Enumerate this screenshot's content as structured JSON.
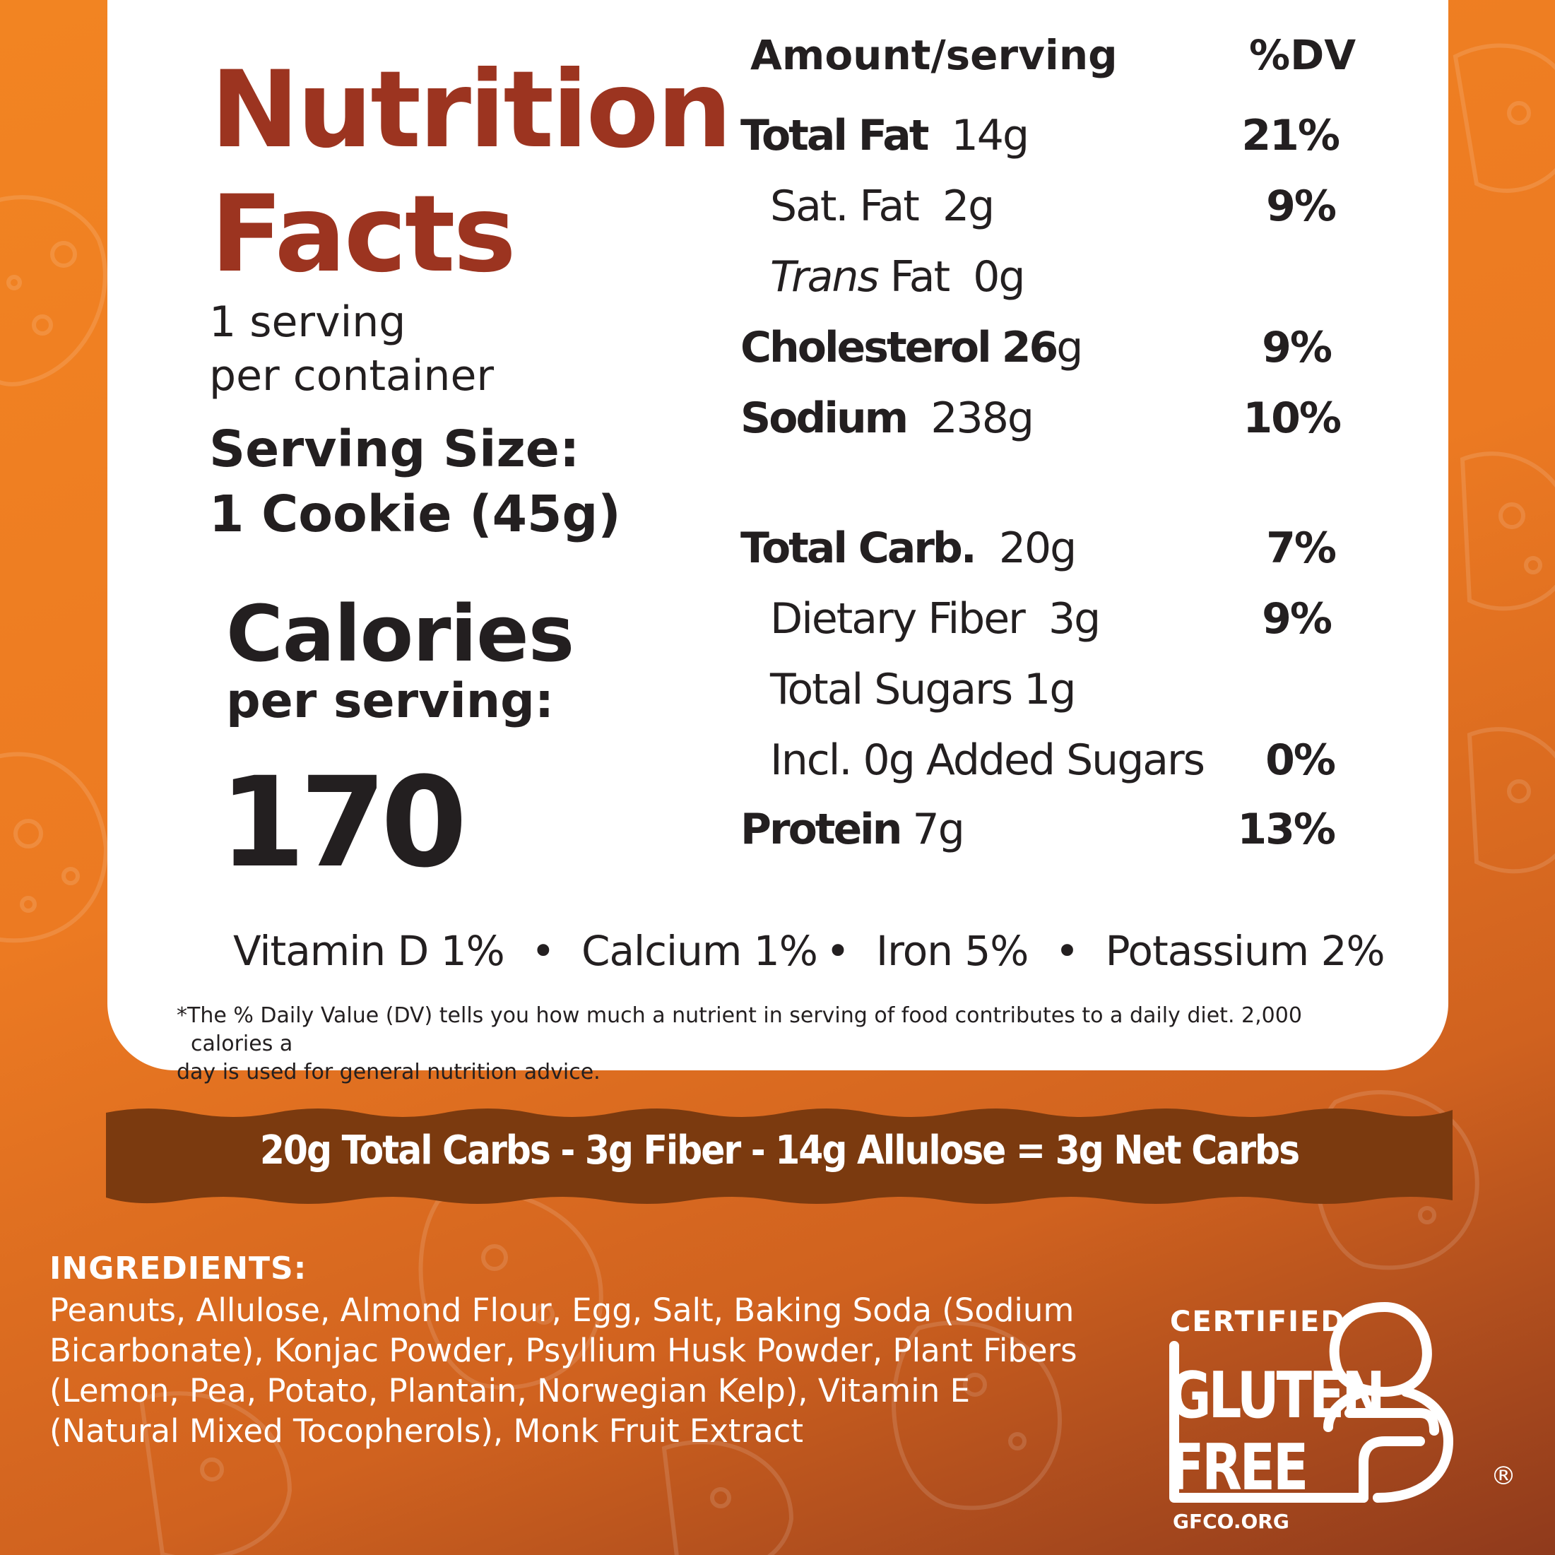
{
  "colors": {
    "title_red": "#9c3420",
    "text_dark": "#231f20",
    "band_brown": "#7b3a0f",
    "bg_orange": "#f28422",
    "bg_dark": "#8f3a1c",
    "card_white": "#ffffff"
  },
  "title": {
    "line1": "Nutrition",
    "line2": "Facts"
  },
  "servings": {
    "line1": "1 serving",
    "line2": "per container"
  },
  "serving_size": {
    "label": "Serving Size:",
    "value": "1 Cookie (45g)"
  },
  "calories": {
    "label": "Calories",
    "sublabel": "per serving:",
    "value": "170"
  },
  "table_header": {
    "amount": "Amount/serving",
    "dv": "%DV"
  },
  "nutrients": {
    "total_fat": {
      "name": "Total Fat",
      "amount": "14g",
      "dv": "21%"
    },
    "sat_fat": {
      "name": "Sat. Fat",
      "amount": "2g",
      "dv": "9%"
    },
    "trans_fat": {
      "name_italic": "Trans",
      "name": "Fat",
      "amount": "0g"
    },
    "cholesterol": {
      "name": "Cholesterol",
      "amount_bold": "26",
      "amount_unit": "g",
      "dv": "9%"
    },
    "sodium": {
      "name": "Sodium",
      "amount": "238g",
      "dv": "10%"
    },
    "total_carb": {
      "name": "Total Carb.",
      "amount": "20g",
      "dv": "7%"
    },
    "fiber": {
      "name": "Dietary Fiber",
      "amount": "3g",
      "dv": "9%"
    },
    "sugars": {
      "name": "Total Sugars",
      "amount": "1g"
    },
    "added_sugars": {
      "name": "Incl. 0g Added Sugars",
      "dv": "0%"
    },
    "protein": {
      "name": "Protein",
      "amount": "7g",
      "dv": "13%"
    }
  },
  "vitamins": {
    "vitamin_d": "Vitamin D 1%",
    "calcium": "Calcium 1%",
    "iron": "Iron 5%",
    "potassium": "Potassium 2%",
    "separator": "•"
  },
  "footnote": {
    "line1": "*The % Daily Value (DV) tells you how much a nutrient in serving of food contributes to a daily diet. 2,000 calories a",
    "line2": "day is used for general nutrition advice."
  },
  "net_carbs": "20g  Total Carbs  -  3g Fiber -  14g Allulose = 3g Net Carbs",
  "ingredients": {
    "title": "INGREDIENTS:",
    "line1": "Peanuts, Allulose, Almond Flour, Egg, Salt, Baking Soda (Sodium",
    "line2": "Bicarbonate), Konjac Powder, Psyllium Husk Powder, Plant Fibers",
    "line3": "(Lemon, Pea, Potato, Plantain, Norwegian Kelp), Vitamin E",
    "line4": "(Natural Mixed Tocopherols), Monk Fruit Extract"
  },
  "certification": {
    "certified": "CERTIFIED",
    "gluten": "GLUTEN",
    "free": "FREE",
    "site": "GFCO.ORG",
    "registered": "®"
  }
}
